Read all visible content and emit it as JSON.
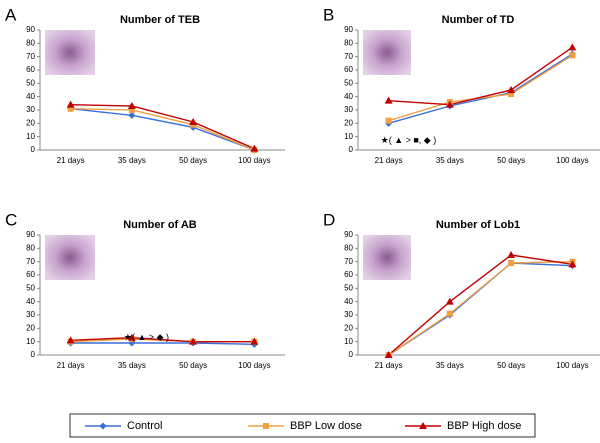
{
  "chart_data": [
    {
      "type": "line",
      "panel": "A",
      "title": "Number of TEB",
      "categories": [
        "21 days",
        "35 days",
        "50 days",
        "100 days"
      ],
      "ylim": [
        0,
        90
      ],
      "yticks": [
        0,
        10,
        20,
        30,
        40,
        50,
        60,
        70,
        80,
        90
      ],
      "series": [
        {
          "name": "Control",
          "color": "#3a6fd8",
          "marker": "diamond",
          "values": [
            31,
            26,
            17,
            0
          ]
        },
        {
          "name": "BBP Low dose",
          "color": "#f0a040",
          "marker": "square",
          "values": [
            31,
            30,
            19,
            0
          ]
        },
        {
          "name": "BBP High dose",
          "color": "#c00000",
          "marker": "triangle",
          "values": [
            34,
            33,
            21,
            1
          ]
        }
      ]
    },
    {
      "type": "line",
      "panel": "B",
      "title": "Number of TD",
      "categories": [
        "21 days",
        "35 days",
        "50 days",
        "100 days"
      ],
      "ylim": [
        0,
        90
      ],
      "yticks": [
        0,
        10,
        20,
        30,
        40,
        50,
        60,
        70,
        80,
        90
      ],
      "annotation": "★( ▲ > ■, ◆ )",
      "series": [
        {
          "color": "#3a6fd8",
          "marker": "diamond",
          "values": [
            20,
            33,
            43,
            72
          ]
        },
        {
          "color": "#f0a040",
          "marker": "square",
          "values": [
            22,
            36,
            42,
            71
          ]
        },
        {
          "color": "#c00000",
          "marker": "triangle",
          "values": [
            37,
            34,
            45,
            77
          ]
        }
      ]
    },
    {
      "type": "line",
      "panel": "C",
      "title": "Number of AB",
      "categories": [
        "21 days",
        "35 days",
        "50 days",
        "100 days"
      ],
      "ylim": [
        0,
        90
      ],
      "yticks": [
        0,
        10,
        20,
        30,
        40,
        50,
        60,
        70,
        80,
        90
      ],
      "annotation": "★( ▲ > ◆ )",
      "series": [
        {
          "color": "#3a6fd8",
          "marker": "diamond",
          "values": [
            9,
            9,
            9,
            8
          ]
        },
        {
          "color": "#f0a040",
          "marker": "square",
          "values": [
            10,
            12,
            10,
            10
          ]
        },
        {
          "color": "#c00000",
          "marker": "triangle",
          "values": [
            11,
            13,
            10,
            10
          ]
        }
      ]
    },
    {
      "type": "line",
      "panel": "D",
      "title": "Number of Lob1",
      "categories": [
        "21 days",
        "35 days",
        "50 days",
        "100 days"
      ],
      "ylim": [
        0,
        90
      ],
      "yticks": [
        0,
        10,
        20,
        30,
        40,
        50,
        60,
        70,
        80,
        90
      ],
      "series": [
        {
          "color": "#3a6fd8",
          "marker": "diamond",
          "values": [
            0,
            30,
            69,
            67
          ]
        },
        {
          "color": "#f0a040",
          "marker": "square",
          "values": [
            0,
            31,
            69,
            70
          ]
        },
        {
          "color": "#c00000",
          "marker": "triangle",
          "values": [
            0,
            40,
            75,
            68
          ]
        }
      ]
    }
  ]
}
